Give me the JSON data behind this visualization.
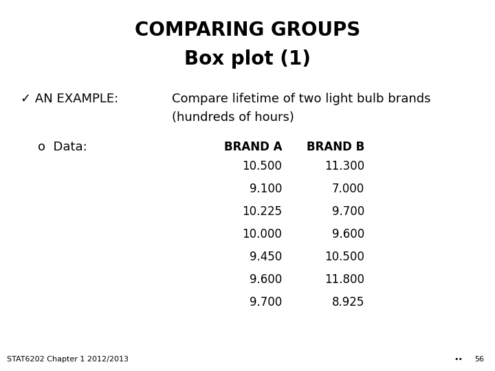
{
  "title_line1": "COMPARING GROUPS",
  "title_line2": "Box plot (1)",
  "check_label": "✓ AN EXAMPLE:",
  "check_text_line1": "Compare lifetime of two light bulb brands",
  "check_text_line2": "(hundreds of hours)",
  "bullet_label": "o  Data:",
  "col1_header": "BRAND A",
  "col2_header": "BRAND B",
  "brand_a": [
    "10.500",
    "9.100",
    "10.225",
    "10.000",
    "9.450",
    "9.600",
    "9.700"
  ],
  "brand_b": [
    "11.300",
    "7.000",
    "9.700",
    "9.600",
    "10.500",
    "11.800",
    "8.925"
  ],
  "footer_left": "STAT6202 Chapter 1 2012/2013",
  "footer_dots": "••",
  "footer_page": "56",
  "bg_color": "#ffffff",
  "text_color": "#000000",
  "title1_fontsize": 20,
  "title2_fontsize": 20,
  "body_fontsize": 13,
  "table_fontsize": 12,
  "header_fontsize": 12,
  "footer_fontsize": 8
}
